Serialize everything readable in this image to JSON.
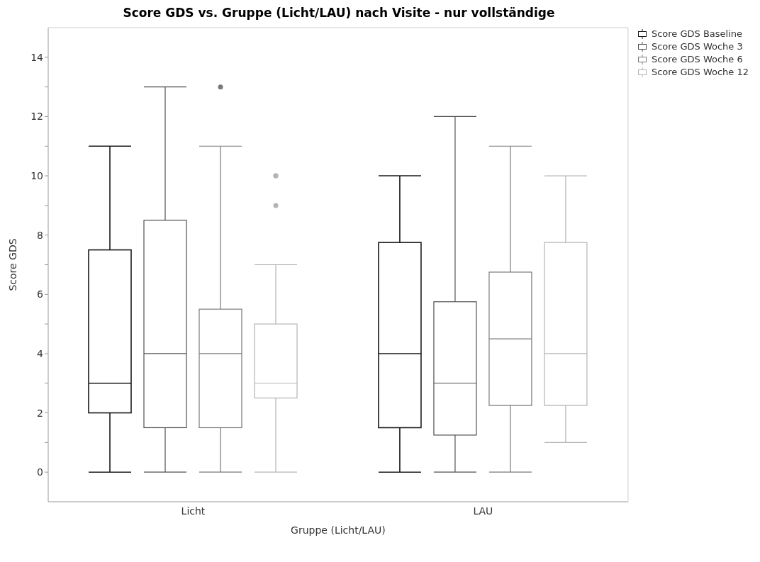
{
  "chart_data": {
    "type": "box",
    "title": "Score GDS vs. Gruppe (Licht/LAU) nach Visite - nur vollständige",
    "xlabel": "Gruppe (Licht/LAU)",
    "ylabel": "Score GDS",
    "categories": [
      "Licht",
      "LAU"
    ],
    "series": [
      {
        "name": "Score GDS Baseline",
        "color": "#1a1a1a",
        "boxes": [
          {
            "low": 0,
            "q1": 2,
            "median": 3,
            "q3": 7.5,
            "high": 11
          },
          {
            "low": 0,
            "q1": 1.5,
            "median": 4,
            "q3": 7.75,
            "high": 10
          }
        ]
      },
      {
        "name": "Score GDS Woche 3",
        "color": "#505050",
        "boxes": [
          {
            "low": 0,
            "q1": 1.5,
            "median": 4,
            "q3": 8.5,
            "high": 13
          },
          {
            "low": 0,
            "q1": 1.25,
            "median": 3,
            "q3": 5.75,
            "high": 12
          }
        ]
      },
      {
        "name": "Score GDS Woche 6",
        "color": "#787878",
        "boxes": [
          {
            "low": 0,
            "q1": 1.5,
            "median": 4,
            "q3": 5.5,
            "high": 11,
            "outliers": [
              13
            ]
          },
          {
            "low": 0,
            "q1": 2.25,
            "median": 4.5,
            "q3": 6.75,
            "high": 11
          }
        ]
      },
      {
        "name": "Score GDS Woche 12",
        "color": "#b4b4b4",
        "boxes": [
          {
            "low": 0,
            "q1": 2.5,
            "median": 3,
            "q3": 5,
            "high": 7,
            "outliers": [
              9,
              10,
              10
            ]
          },
          {
            "low": 1,
            "q1": 2.25,
            "median": 4,
            "q3": 7.75,
            "high": 10
          }
        ]
      }
    ],
    "ylim": [
      -1,
      15
    ],
    "yticks": [
      0,
      {
        "value": 1,
        "label": null
      },
      2,
      {
        "value": 3,
        "label": null
      },
      4,
      {
        "value": 5,
        "label": null
      },
      6,
      {
        "value": 7,
        "label": null
      },
      8,
      {
        "value": 9,
        "label": null
      },
      10,
      {
        "value": 11,
        "label": null
      },
      12,
      {
        "value": 13,
        "label": null
      },
      14
    ],
    "grid": false,
    "legend": "top right"
  }
}
